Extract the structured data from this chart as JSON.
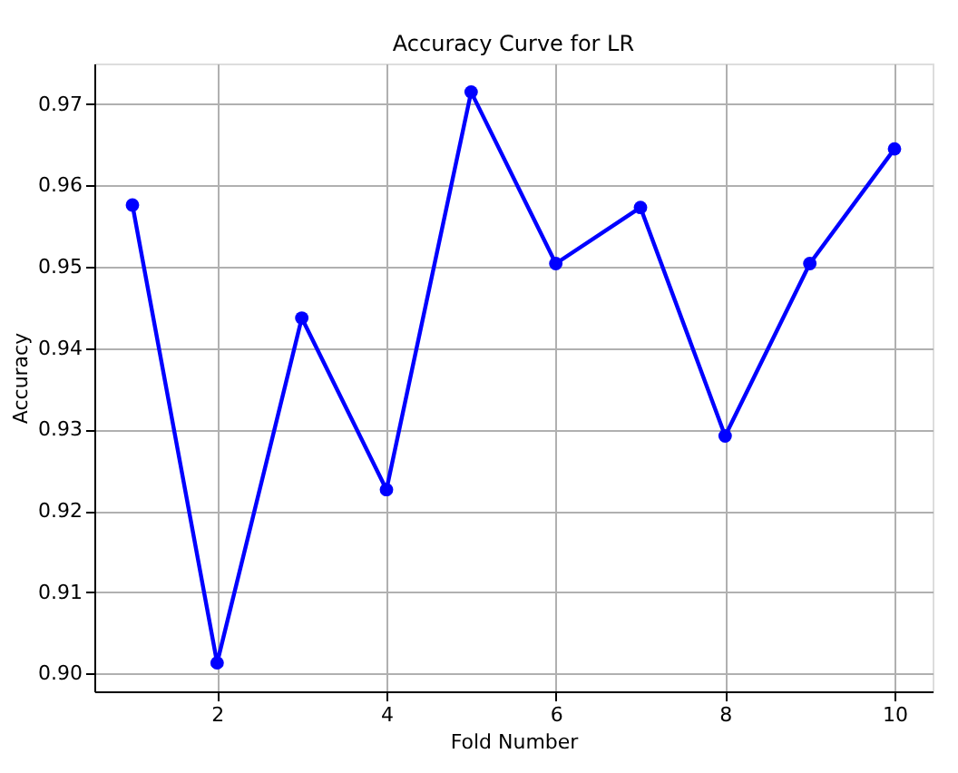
{
  "chart_data": {
    "type": "line",
    "title": "Accuracy Curve for LR",
    "xlabel": "Fold Number",
    "ylabel": "Accuracy",
    "x": [
      1,
      2,
      3,
      4,
      5,
      6,
      7,
      8,
      9,
      10
    ],
    "series": [
      {
        "color": "#0000ff",
        "values": [
          0.9576,
          0.9013,
          0.9437,
          0.9226,
          0.9715,
          0.9504,
          0.9573,
          0.9292,
          0.9504,
          0.9645
        ]
      }
    ],
    "xlim": [
      0.55,
      10.45
    ],
    "xticks": [
      2,
      4,
      6,
      8,
      10
    ],
    "ylim": [
      0.8978,
      0.975
    ],
    "yticks": [
      {
        "value": 0.9,
        "label": "0.90"
      },
      {
        "value": 0.91,
        "label": "0.91"
      },
      {
        "value": 0.92,
        "label": "0.92"
      },
      {
        "value": 0.93,
        "label": "0.93"
      },
      {
        "value": 0.94,
        "label": "0.94"
      },
      {
        "value": 0.95,
        "label": "0.95"
      },
      {
        "value": 0.96,
        "label": "0.96"
      },
      {
        "value": 0.97,
        "label": "0.97"
      }
    ],
    "grid": true,
    "marker": "circle",
    "line_style": "solid"
  }
}
